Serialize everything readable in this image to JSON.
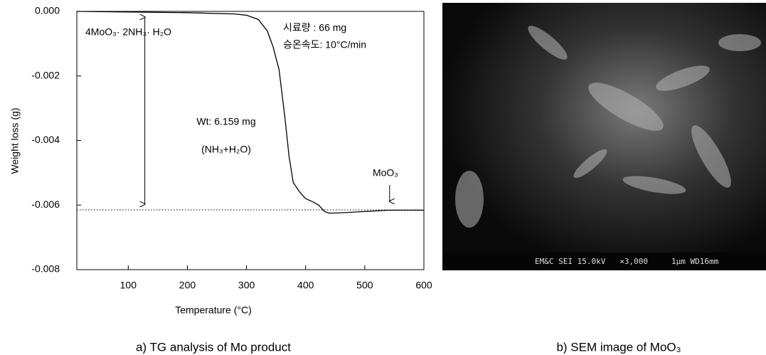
{
  "chart_data": {
    "type": "line",
    "x_label": "Temperature (°C)",
    "y_label": "Weight loss (g)",
    "xlim": [
      13,
      600
    ],
    "xticks": [
      100,
      200,
      300,
      400,
      500,
      600
    ],
    "ylim": [
      -0.008,
      0
    ],
    "yticks": [
      {
        "value": 0,
        "label": "0.000"
      },
      -0.002,
      -0.004,
      -0.006,
      -0.008
    ],
    "x": [
      13,
      100,
      200,
      280,
      300,
      320,
      335,
      345,
      355,
      365,
      372,
      379,
      390,
      400,
      412,
      422,
      432,
      440,
      460,
      500,
      540,
      600
    ],
    "series": [
      {
        "color": "#000000",
        "values": [
          0,
          -2e-05,
          -4e-05,
          -8e-05,
          -0.00012,
          -0.00025,
          -0.0006,
          -0.0011,
          -0.0018,
          -0.0033,
          -0.0045,
          -0.0053,
          -0.0056,
          -0.0058,
          -0.0059,
          -0.006,
          -0.0062,
          -0.00625,
          -0.00624,
          -0.0062,
          -0.00616,
          -0.00616
        ]
      }
    ],
    "reference_line": -0.00615,
    "annotations": [
      "4MoO₃· 2NH₃· H₂O",
      "시료량 : 66 mg",
      "승온속도: 10°C/min",
      "Wt: 6.159 mg",
      "(NH₃+H₂O)",
      "MoO₃"
    ],
    "caption": "a) TG analysis of Mo product"
  },
  "image": {
    "info_bar": "EM&C SEI 15.0kV   ×3,000     1μm WD16mm",
    "caption": "b) SEM image of MoO₃"
  }
}
